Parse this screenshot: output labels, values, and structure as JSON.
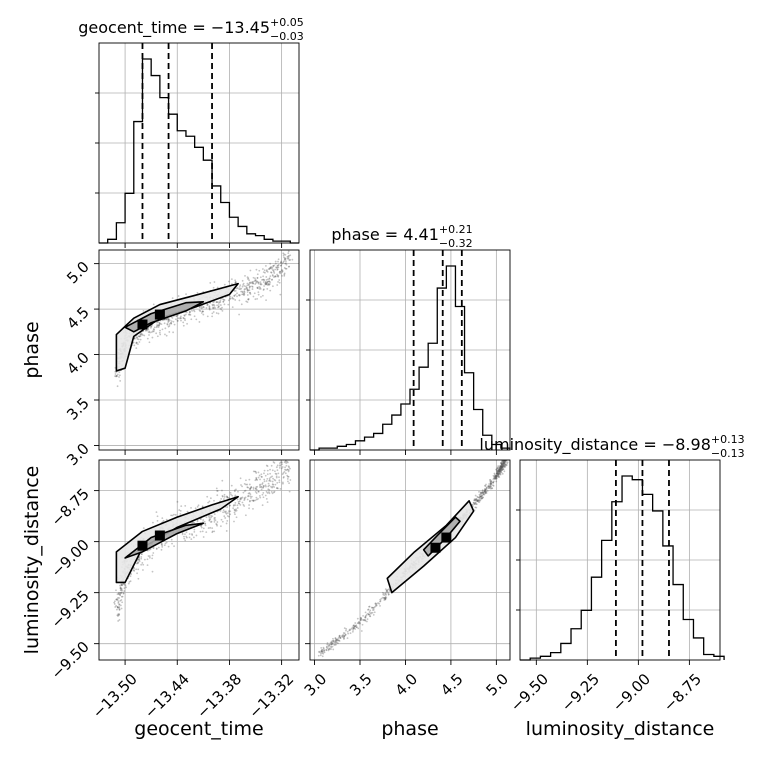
{
  "chart_data": {
    "type": "corner",
    "parameters": [
      {
        "name": "geocent_time",
        "label": "geocent_time",
        "range": [
          -13.53,
          -13.3
        ],
        "ticks": [
          -13.5,
          -13.44,
          -13.38,
          -13.32
        ],
        "tick_labels": [
          "−13.50",
          "−13.44",
          "−13.38",
          "−13.32"
        ],
        "title": {
          "prefix": "geocent_time = −13.45",
          "plus": "+0.05",
          "minus": "−0.03"
        },
        "quantiles": [
          -13.48,
          -13.45,
          -13.4
        ],
        "histogram": {
          "bin_edges": [
            -13.53,
            -13.52,
            -13.51,
            -13.5,
            -13.49,
            -13.48,
            -13.47,
            -13.46,
            -13.45,
            -13.44,
            -13.43,
            -13.42,
            -13.41,
            -13.4,
            -13.39,
            -13.38,
            -13.37,
            -13.36,
            -13.35,
            -13.34,
            -13.33,
            -13.32,
            -13.31,
            -13.3
          ],
          "counts": [
            0.0,
            0.02,
            0.11,
            0.27,
            0.66,
            1.0,
            0.91,
            0.79,
            0.7,
            0.61,
            0.58,
            0.52,
            0.45,
            0.31,
            0.22,
            0.14,
            0.09,
            0.05,
            0.04,
            0.02,
            0.01,
            0.01,
            0.0
          ]
        }
      },
      {
        "name": "phase",
        "label": "phase",
        "range": [
          2.95,
          5.15
        ],
        "ticks": [
          3.0,
          3.5,
          4.0,
          4.5,
          5.0
        ],
        "tick_labels": [
          "3.0",
          "3.5",
          "4.0",
          "4.5",
          "5.0"
        ],
        "title": {
          "prefix": "phase = 4.41",
          "plus": "+0.21",
          "minus": "−0.32"
        },
        "quantiles": [
          4.09,
          4.41,
          4.62
        ],
        "histogram": {
          "bin_edges": [
            2.95,
            3.05,
            3.15,
            3.25,
            3.35,
            3.45,
            3.55,
            3.65,
            3.75,
            3.85,
            3.95,
            4.05,
            4.15,
            4.25,
            4.35,
            4.45,
            4.55,
            4.65,
            4.75,
            4.85,
            4.95,
            5.05,
            5.15
          ],
          "counts": [
            0.0,
            0.01,
            0.01,
            0.02,
            0.03,
            0.05,
            0.07,
            0.09,
            0.14,
            0.19,
            0.25,
            0.33,
            0.45,
            0.58,
            0.88,
            1.0,
            0.78,
            0.42,
            0.22,
            0.08,
            0.03,
            0.01
          ]
        }
      },
      {
        "name": "luminosity_distance",
        "label": "luminosity_distance",
        "range": [
          -9.58,
          -8.6
        ],
        "ticks": [
          -9.5,
          -9.25,
          -9.0,
          -8.75
        ],
        "tick_labels": [
          "−9.50",
          "−9.25",
          "−9.00",
          "−8.75"
        ],
        "title": {
          "prefix": "luminosity_distance = −8.98",
          "plus": "+0.13",
          "minus": "−0.13"
        },
        "quantiles": [
          -9.11,
          -8.98,
          -8.85
        ],
        "histogram": {
          "bin_edges": [
            -9.58,
            -9.53,
            -9.48,
            -9.43,
            -9.38,
            -9.33,
            -9.28,
            -9.23,
            -9.18,
            -9.13,
            -9.08,
            -9.03,
            -8.98,
            -8.93,
            -8.88,
            -8.83,
            -8.78,
            -8.73,
            -8.68,
            -8.63,
            -8.58
          ],
          "counts": [
            0.0,
            0.01,
            0.02,
            0.04,
            0.09,
            0.17,
            0.27,
            0.45,
            0.65,
            0.86,
            1.0,
            0.98,
            0.9,
            0.81,
            0.62,
            0.41,
            0.22,
            0.12,
            0.03,
            0.02
          ]
        }
      }
    ],
    "pairs": [
      {
        "x": "geocent_time",
        "y": "phase",
        "ridge": [
          [
            -13.51,
            3.8
          ],
          [
            -13.5,
            4.12
          ],
          [
            -13.48,
            4.3
          ],
          [
            -13.45,
            4.42
          ],
          [
            -13.42,
            4.52
          ],
          [
            -13.38,
            4.64
          ],
          [
            -13.34,
            4.82
          ],
          [
            -13.31,
            5.05
          ]
        ],
        "ridge_spread": 0.22,
        "contours": [
          {
            "level": "outer",
            "points": [
              [
                -13.51,
                3.82
              ],
              [
                -13.51,
                4.22
              ],
              [
                -13.49,
                4.4
              ],
              [
                -13.46,
                4.55
              ],
              [
                -13.42,
                4.65
              ],
              [
                -13.37,
                4.78
              ],
              [
                -13.38,
                4.66
              ],
              [
                -13.42,
                4.52
              ],
              [
                -13.46,
                4.4
              ],
              [
                -13.49,
                4.2
              ],
              [
                -13.5,
                3.85
              ]
            ]
          },
          {
            "level": "inner",
            "points": [
              [
                -13.5,
                4.3
              ],
              [
                -13.47,
                4.45
              ],
              [
                -13.43,
                4.57
              ],
              [
                -13.41,
                4.58
              ],
              [
                -13.43,
                4.48
              ],
              [
                -13.47,
                4.35
              ],
              [
                -13.49,
                4.25
              ]
            ]
          }
        ],
        "modes": [
          [
            -13.48,
            4.33
          ],
          [
            -13.46,
            4.44
          ]
        ]
      },
      {
        "x": "geocent_time",
        "y": "luminosity_distance",
        "ridge": [
          [
            -13.51,
            -9.35
          ],
          [
            -13.5,
            -9.15
          ],
          [
            -13.48,
            -9.03
          ],
          [
            -13.45,
            -8.95
          ],
          [
            -13.42,
            -8.9
          ],
          [
            -13.38,
            -8.82
          ],
          [
            -13.34,
            -8.72
          ],
          [
            -13.31,
            -8.62
          ]
        ],
        "ridge_spread": 0.13,
        "contours": [
          {
            "level": "outer",
            "points": [
              [
                -13.51,
                -9.2
              ],
              [
                -13.51,
                -9.05
              ],
              [
                -13.48,
                -8.95
              ],
              [
                -13.44,
                -8.88
              ],
              [
                -13.4,
                -8.82
              ],
              [
                -13.37,
                -8.78
              ],
              [
                -13.39,
                -8.84
              ],
              [
                -13.44,
                -8.93
              ],
              [
                -13.48,
                -9.03
              ],
              [
                -13.5,
                -9.2
              ]
            ]
          },
          {
            "level": "inner",
            "points": [
              [
                -13.5,
                -9.08
              ],
              [
                -13.47,
                -8.98
              ],
              [
                -13.43,
                -8.92
              ],
              [
                -13.41,
                -8.91
              ],
              [
                -13.44,
                -8.96
              ],
              [
                -13.48,
                -9.05
              ]
            ]
          }
        ],
        "modes": [
          [
            -13.48,
            -9.02
          ],
          [
            -13.46,
            -8.97
          ]
        ]
      },
      {
        "x": "phase",
        "y": "luminosity_distance",
        "ridge": [
          [
            3.05,
            -9.55
          ],
          [
            3.5,
            -9.4
          ],
          [
            4.0,
            -9.15
          ],
          [
            4.4,
            -8.98
          ],
          [
            4.7,
            -8.85
          ],
          [
            5.0,
            -8.68
          ],
          [
            5.1,
            -8.6
          ]
        ],
        "ridge_spread": 0.03,
        "contours": [
          {
            "level": "outer",
            "points": [
              [
                3.85,
                -9.25
              ],
              [
                4.2,
                -9.12
              ],
              [
                4.55,
                -8.98
              ],
              [
                4.75,
                -8.85
              ],
              [
                4.7,
                -8.8
              ],
              [
                4.45,
                -8.92
              ],
              [
                4.1,
                -9.05
              ],
              [
                3.8,
                -9.18
              ]
            ]
          },
          {
            "level": "inner",
            "points": [
              [
                4.25,
                -9.07
              ],
              [
                4.45,
                -8.98
              ],
              [
                4.6,
                -8.9
              ],
              [
                4.55,
                -8.88
              ],
              [
                4.35,
                -8.97
              ],
              [
                4.2,
                -9.04
              ]
            ]
          }
        ],
        "modes": [
          [
            4.33,
            -9.03
          ],
          [
            4.45,
            -8.98
          ]
        ]
      }
    ],
    "grid": true,
    "colors": {
      "line": "#000000",
      "grid": "#b0b0b0",
      "scatter": "#555555",
      "fill_outer": "#e8e8e8",
      "fill_inner": "#a9a9a9",
      "mode": "#000000"
    }
  }
}
